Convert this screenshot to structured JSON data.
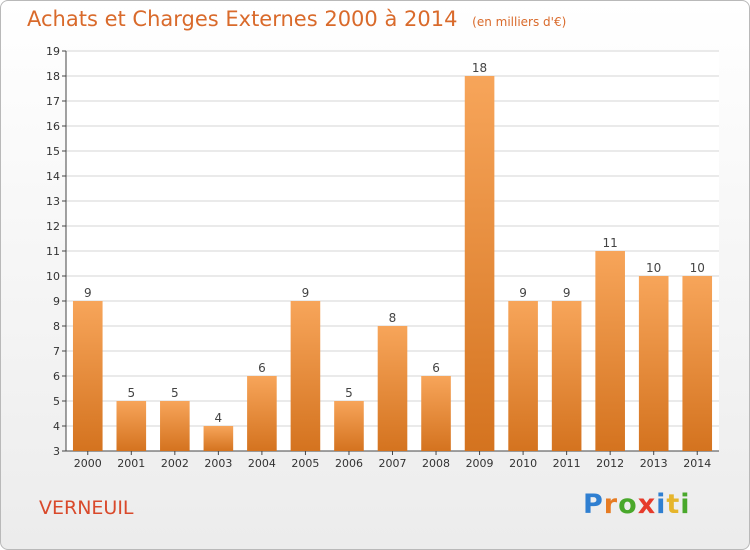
{
  "header": {
    "title": "Achats et Charges Externes 2000 à 2014",
    "unit": "(en milliers d'€)"
  },
  "footer": {
    "city": "VERNEUIL",
    "logo_letters": [
      "P",
      "r",
      "o",
      "x",
      "i",
      "t",
      "i"
    ],
    "logo_colors": [
      "#2f7fd1",
      "#e67b22",
      "#49a82b",
      "#e63b2b",
      "#2f7fd1",
      "#e6b52b",
      "#49a82b"
    ]
  },
  "colors": {
    "bar_light": "#f7a55a",
    "bar_dark": "#d4731f",
    "axis": "#444444",
    "grid": "#d6d6d6"
  },
  "chart_data": {
    "type": "bar",
    "title": "Achats et Charges Externes 2000 à 2014",
    "categories": [
      "2000",
      "2001",
      "2002",
      "2003",
      "2004",
      "2005",
      "2006",
      "2007",
      "2008",
      "2009",
      "2010",
      "2011",
      "2012",
      "2013",
      "2014"
    ],
    "values": [
      9,
      5,
      5,
      4,
      6,
      9,
      5,
      8,
      6,
      18,
      9,
      9,
      11,
      10,
      10
    ],
    "ylim": [
      3,
      19
    ],
    "yticks": [
      3,
      4,
      5,
      6,
      7,
      8,
      9,
      10,
      11,
      12,
      13,
      14,
      15,
      16,
      17,
      18,
      19
    ],
    "grid": true,
    "data_labels": true
  }
}
